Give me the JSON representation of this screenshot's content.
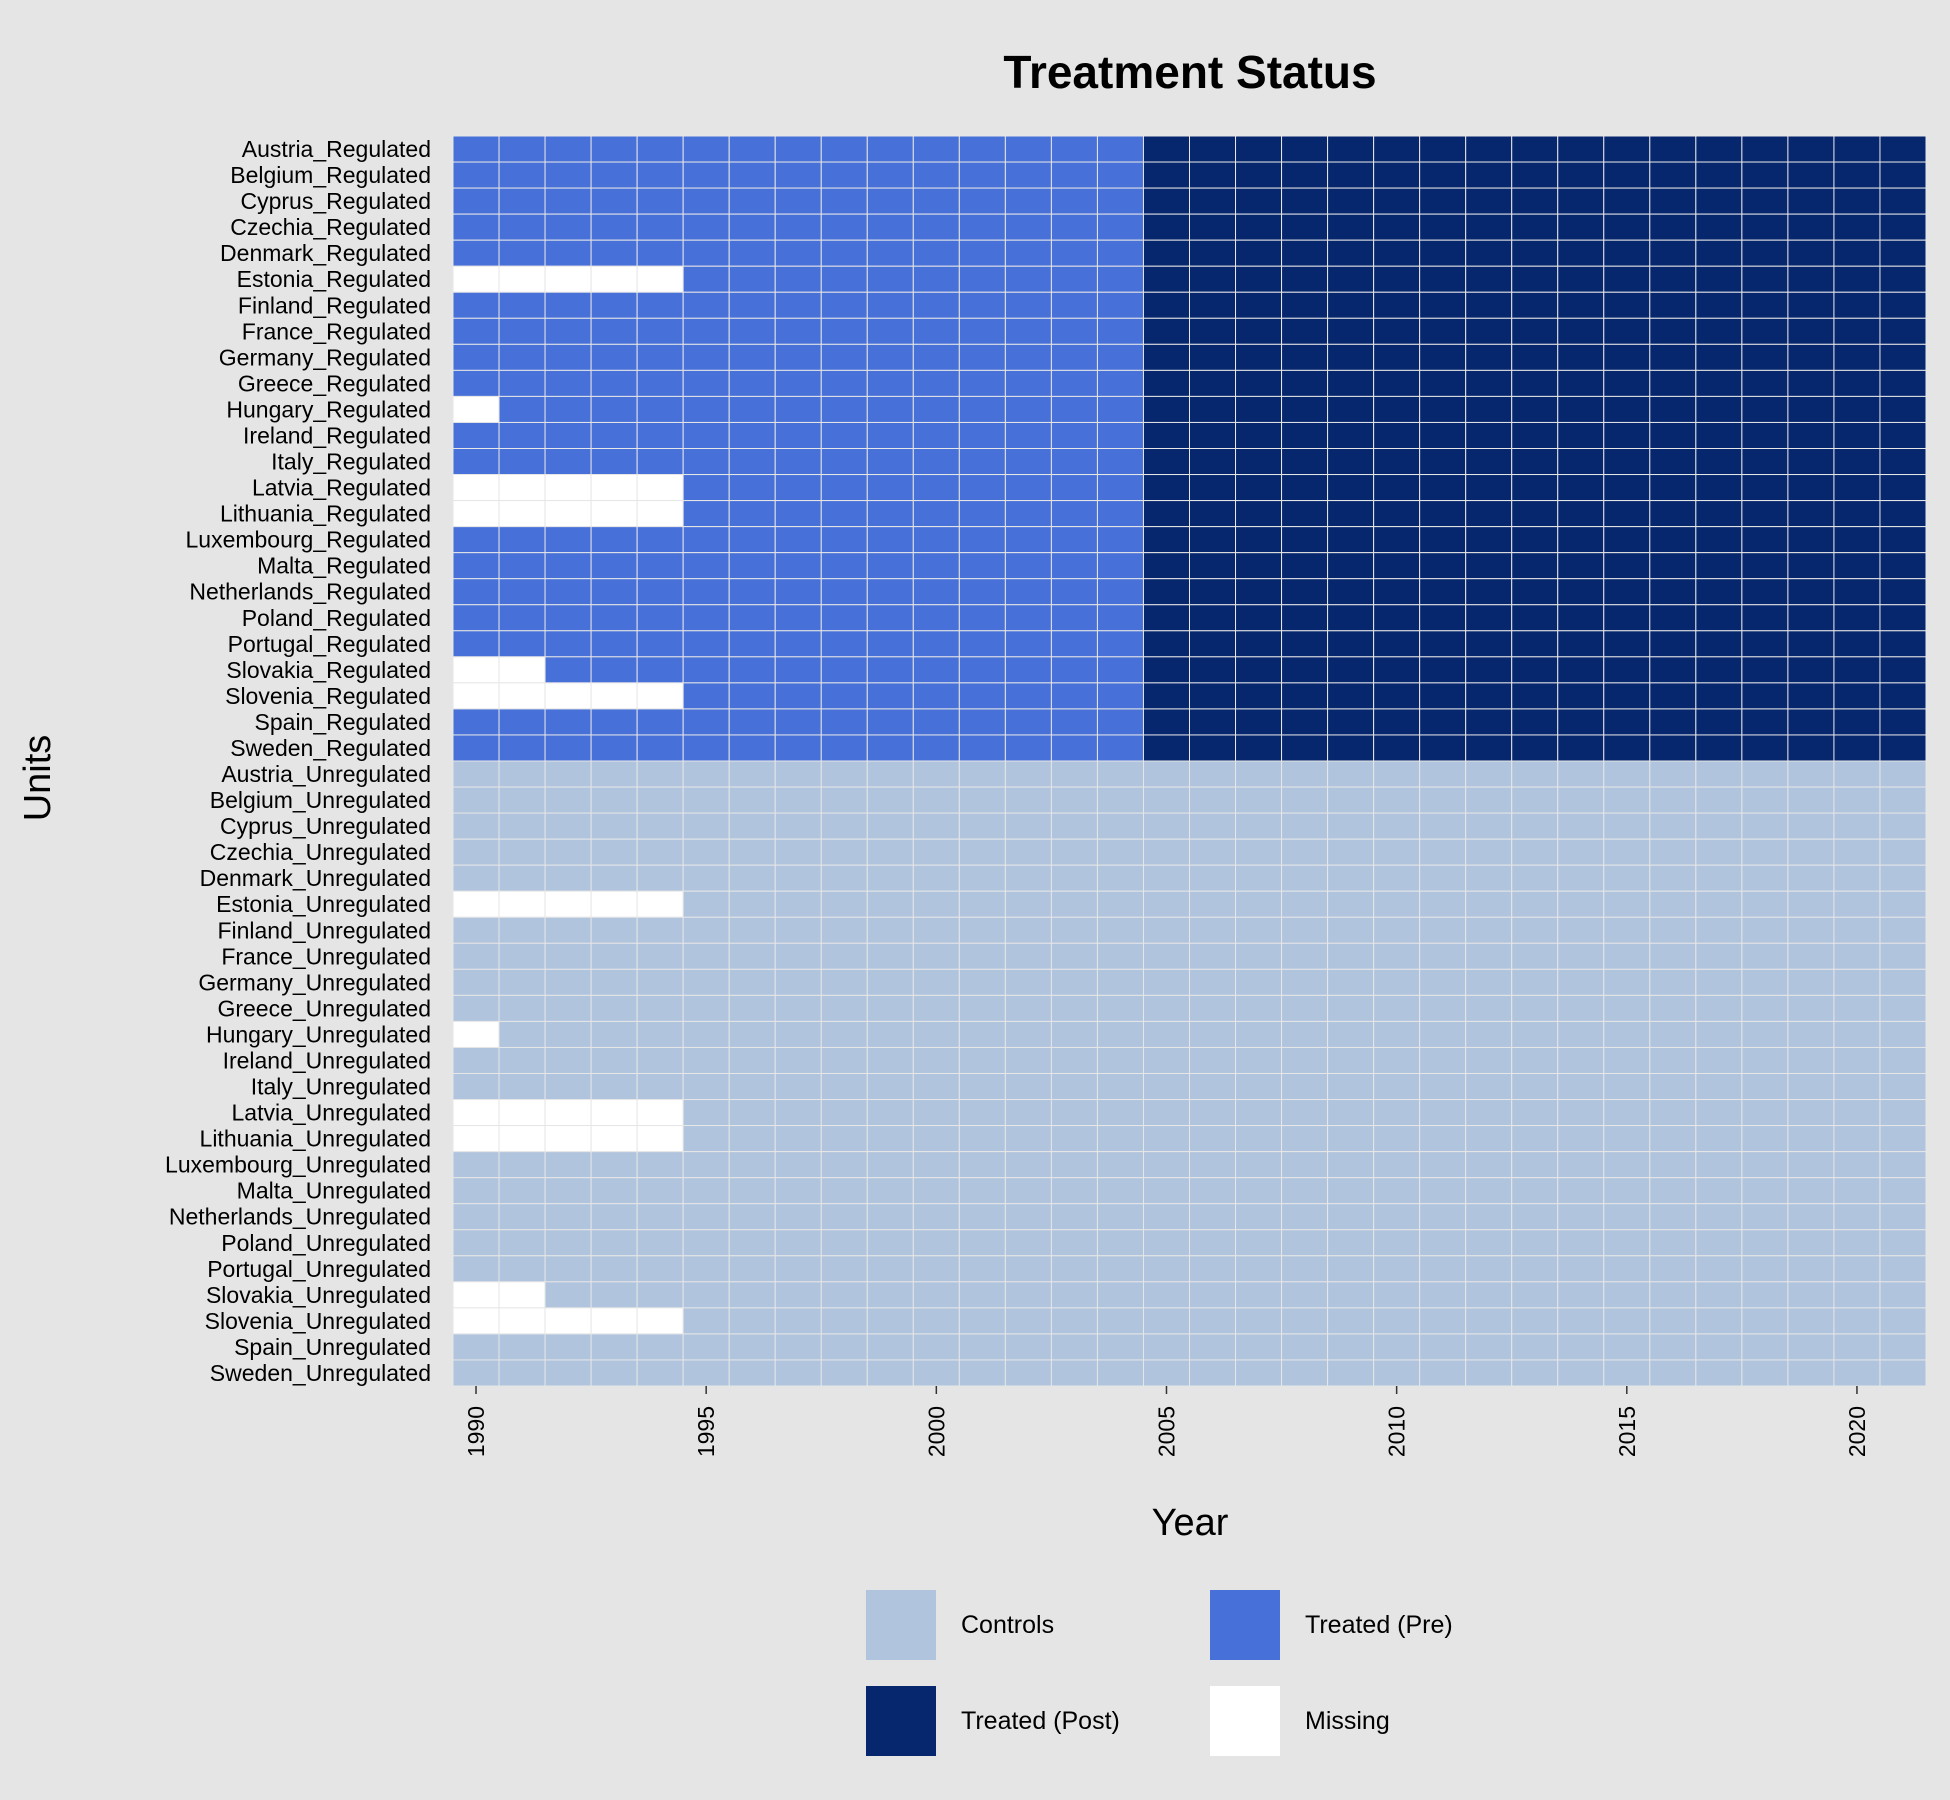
{
  "chart_data": {
    "type": "heatmap",
    "title": "Treatment Status",
    "xlabel": "Year",
    "ylabel": "Units",
    "x_ticks": [
      1990,
      1995,
      2000,
      2005,
      2010,
      2015,
      2020
    ],
    "xlim": [
      1990,
      2021
    ],
    "treatment_start_year": 2005,
    "colors": {
      "controls": "#b0c4de",
      "treated_pre": "#4771d9",
      "treated_post": "#06266e",
      "missing": "#ffffff",
      "background": "#e5e5e5",
      "grid": "#e6e6e6"
    },
    "legend": {
      "position": "bottom",
      "items": [
        {
          "key": "controls",
          "label": "Controls"
        },
        {
          "key": "treated_pre",
          "label": "Treated (Pre)"
        },
        {
          "key": "treated_post",
          "label": "Treated (Post)"
        },
        {
          "key": "missing",
          "label": "Missing"
        }
      ]
    },
    "units": [
      {
        "name": "Austria_Regulated",
        "group": "treated"
      },
      {
        "name": "Belgium_Regulated",
        "group": "treated"
      },
      {
        "name": "Cyprus_Regulated",
        "group": "treated"
      },
      {
        "name": "Czechia_Regulated",
        "group": "treated"
      },
      {
        "name": "Denmark_Regulated",
        "group": "treated"
      },
      {
        "name": "Estonia_Regulated",
        "group": "treated",
        "missing_years": [
          1990,
          1991,
          1992,
          1993,
          1994
        ]
      },
      {
        "name": "Finland_Regulated",
        "group": "treated"
      },
      {
        "name": "France_Regulated",
        "group": "treated"
      },
      {
        "name": "Germany_Regulated",
        "group": "treated"
      },
      {
        "name": "Greece_Regulated",
        "group": "treated"
      },
      {
        "name": "Hungary_Regulated",
        "group": "treated",
        "missing_years": [
          1990
        ]
      },
      {
        "name": "Ireland_Regulated",
        "group": "treated"
      },
      {
        "name": "Italy_Regulated",
        "group": "treated"
      },
      {
        "name": "Latvia_Regulated",
        "group": "treated",
        "missing_years": [
          1990,
          1991,
          1992,
          1993,
          1994
        ]
      },
      {
        "name": "Lithuania_Regulated",
        "group": "treated",
        "missing_years": [
          1990,
          1991,
          1992,
          1993,
          1994
        ]
      },
      {
        "name": "Luxembourg_Regulated",
        "group": "treated"
      },
      {
        "name": "Malta_Regulated",
        "group": "treated"
      },
      {
        "name": "Netherlands_Regulated",
        "group": "treated"
      },
      {
        "name": "Poland_Regulated",
        "group": "treated"
      },
      {
        "name": "Portugal_Regulated",
        "group": "treated"
      },
      {
        "name": "Slovakia_Regulated",
        "group": "treated",
        "missing_years": [
          1990,
          1991
        ]
      },
      {
        "name": "Slovenia_Regulated",
        "group": "treated",
        "missing_years": [
          1990,
          1991,
          1992,
          1993,
          1994
        ]
      },
      {
        "name": "Spain_Regulated",
        "group": "treated"
      },
      {
        "name": "Sweden_Regulated",
        "group": "treated"
      },
      {
        "name": "Austria_Unregulated",
        "group": "control"
      },
      {
        "name": "Belgium_Unregulated",
        "group": "control"
      },
      {
        "name": "Cyprus_Unregulated",
        "group": "control"
      },
      {
        "name": "Czechia_Unregulated",
        "group": "control"
      },
      {
        "name": "Denmark_Unregulated",
        "group": "control"
      },
      {
        "name": "Estonia_Unregulated",
        "group": "control",
        "missing_years": [
          1990,
          1991,
          1992,
          1993,
          1994
        ]
      },
      {
        "name": "Finland_Unregulated",
        "group": "control"
      },
      {
        "name": "France_Unregulated",
        "group": "control"
      },
      {
        "name": "Germany_Unregulated",
        "group": "control"
      },
      {
        "name": "Greece_Unregulated",
        "group": "control"
      },
      {
        "name": "Hungary_Unregulated",
        "group": "control",
        "missing_years": [
          1990
        ]
      },
      {
        "name": "Ireland_Unregulated",
        "group": "control"
      },
      {
        "name": "Italy_Unregulated",
        "group": "control"
      },
      {
        "name": "Latvia_Unregulated",
        "group": "control",
        "missing_years": [
          1990,
          1991,
          1992,
          1993,
          1994
        ]
      },
      {
        "name": "Lithuania_Unregulated",
        "group": "control",
        "missing_years": [
          1990,
          1991,
          1992,
          1993,
          1994
        ]
      },
      {
        "name": "Luxembourg_Unregulated",
        "group": "control"
      },
      {
        "name": "Malta_Unregulated",
        "group": "control"
      },
      {
        "name": "Netherlands_Unregulated",
        "group": "control"
      },
      {
        "name": "Poland_Unregulated",
        "group": "control"
      },
      {
        "name": "Portugal_Unregulated",
        "group": "control"
      },
      {
        "name": "Slovakia_Unregulated",
        "group": "control",
        "missing_years": [
          1990,
          1991
        ]
      },
      {
        "name": "Slovenia_Unregulated",
        "group": "control",
        "missing_years": [
          1990,
          1991,
          1992,
          1993,
          1994
        ]
      },
      {
        "name": "Spain_Unregulated",
        "group": "control"
      },
      {
        "name": "Sweden_Unregulated",
        "group": "control"
      }
    ]
  }
}
